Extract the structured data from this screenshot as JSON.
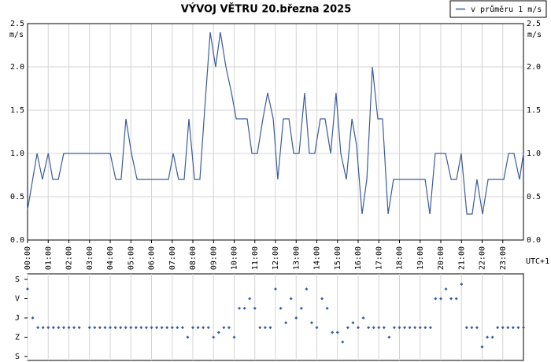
{
  "chart_data": [
    {
      "type": "line",
      "title": "VÝVOJ VĚTRU  20.března 2025",
      "y_label": "m/s",
      "x_label": "UTC+1",
      "legend": "top-right",
      "grid": true,
      "xlim": [
        0,
        24
      ],
      "xticks": [
        {
          "value": 0,
          "label": "00:00"
        },
        {
          "value": 1,
          "label": "01:00"
        },
        {
          "value": 2,
          "label": "02:00"
        },
        {
          "value": 3,
          "label": "03:00"
        },
        {
          "value": 4,
          "label": "04:00"
        },
        {
          "value": 5,
          "label": "05:00"
        },
        {
          "value": 6,
          "label": "06:00"
        },
        {
          "value": 7,
          "label": "07:00"
        },
        {
          "value": 8,
          "label": "08:00"
        },
        {
          "value": 9,
          "label": "09:00"
        },
        {
          "value": 10,
          "label": "10:00"
        },
        {
          "value": 11,
          "label": "11:00"
        },
        {
          "value": 12,
          "label": "12:00"
        },
        {
          "value": 13,
          "label": "13:00"
        },
        {
          "value": 14,
          "label": "14:00"
        },
        {
          "value": 15,
          "label": "15:00"
        },
        {
          "value": 16,
          "label": "16:00"
        },
        {
          "value": 17,
          "label": "17:00"
        },
        {
          "value": 18,
          "label": "18:00"
        },
        {
          "value": 19,
          "label": "19:00"
        },
        {
          "value": 20,
          "label": "20:00"
        },
        {
          "value": 21,
          "label": "21:00"
        },
        {
          "value": 22,
          "label": "22:00"
        },
        {
          "value": 23,
          "label": "23:00"
        }
      ],
      "ylim": [
        0,
        2.5
      ],
      "yticks": [
        {
          "value": 0,
          "label": "0.0"
        },
        0.5,
        {
          "value": 1,
          "label": "1.0"
        },
        1.5,
        {
          "value": 2,
          "label": "2.0"
        },
        2.5
      ],
      "x": [
        0,
        0.46,
        0.72,
        1.0,
        1.22,
        1.49,
        1.75,
        4.0,
        4.27,
        4.53,
        4.76,
        5.03,
        5.3,
        6.82,
        7.05,
        7.31,
        7.58,
        7.81,
        8.08,
        8.34,
        8.57,
        8.84,
        9.1,
        9.33,
        9.6,
        9.87,
        10.1,
        10.63,
        10.86,
        11.12,
        11.39,
        11.62,
        11.89,
        12.11,
        12.38,
        12.65,
        12.88,
        13.14,
        13.41,
        13.64,
        13.9,
        14.17,
        14.4,
        14.67,
        14.93,
        15.16,
        15.43,
        15.7,
        15.92,
        16.19,
        16.42,
        16.69,
        16.95,
        17.18,
        17.45,
        17.71,
        19.24,
        19.47,
        19.73,
        20.23,
        20.5,
        20.76,
        20.99,
        21.26,
        21.52,
        21.75,
        22.02,
        22.29,
        23.05,
        23.28,
        23.54,
        23.81,
        24.0
      ],
      "series": [
        {
          "name": "v průměru 1 m/s",
          "color": "#3b5b9b",
          "values": [
            0.35,
            1.0,
            0.7,
            1.0,
            0.7,
            0.7,
            1.0,
            1.0,
            0.7,
            0.7,
            1.4,
            1.0,
            0.7,
            0.7,
            1.0,
            0.7,
            0.7,
            1.4,
            0.7,
            0.7,
            1.5,
            2.4,
            2.0,
            2.4,
            2.0,
            1.7,
            1.4,
            1.4,
            1.0,
            1.0,
            1.4,
            1.7,
            1.4,
            0.7,
            1.4,
            1.4,
            1.0,
            1.0,
            1.7,
            1.0,
            1.0,
            1.4,
            1.4,
            1.0,
            1.7,
            1.0,
            0.7,
            1.4,
            1.1,
            0.3,
            0.7,
            2.0,
            1.4,
            1.4,
            0.3,
            0.7,
            0.7,
            0.3,
            1.0,
            1.0,
            0.7,
            0.7,
            1.0,
            0.3,
            0.3,
            0.7,
            0.3,
            0.7,
            0.7,
            1.0,
            1.0,
            0.7,
            1.0
          ]
        }
      ]
    },
    {
      "type": "scatter",
      "color": "#3b5b9b",
      "xlim": [
        0,
        24
      ],
      "ylim": [
        0,
        360
      ],
      "yticks": [
        {
          "value": 0,
          "label": "S"
        },
        {
          "value": 90,
          "label": "V"
        },
        {
          "value": 180,
          "label": "J"
        },
        {
          "value": 270,
          "label": "Z"
        },
        {
          "value": 360,
          "label": "S"
        }
      ],
      "x": [
        0,
        0.25,
        0.5,
        0.75,
        1,
        1.25,
        1.5,
        1.75,
        2,
        2.25,
        2.5,
        2.75,
        3,
        3.25,
        3.5,
        3.75,
        4,
        4.25,
        4.5,
        4.75,
        5,
        5.25,
        5.5,
        5.75,
        6,
        6.25,
        6.5,
        6.75,
        7,
        7.25,
        7.5,
        7.75,
        8,
        8.25,
        8.5,
        8.75,
        9,
        9.25,
        9.5,
        9.75,
        10,
        10.25,
        10.5,
        10.75,
        11,
        11.25,
        11.5,
        11.75,
        12,
        12.25,
        12.5,
        12.75,
        13,
        13.25,
        13.5,
        13.75,
        14,
        14.25,
        14.5,
        14.75,
        15,
        15.25,
        15.5,
        15.75,
        16,
        16.25,
        16.5,
        16.75,
        17,
        17.25,
        17.5,
        17.75,
        18,
        18.25,
        18.5,
        18.75,
        19,
        19.25,
        19.5,
        19.75,
        20,
        20.25,
        20.5,
        20.75,
        21,
        21.25,
        21.5,
        21.75,
        22,
        22.25,
        22.5,
        22.75,
        23,
        23.25,
        23.5,
        23.75,
        24
      ],
      "values": [
        45,
        180,
        225,
        225,
        225,
        225,
        225,
        225,
        225,
        225,
        225,
        null,
        225,
        225,
        225,
        225,
        225,
        225,
        225,
        225,
        225,
        225,
        225,
        225,
        225,
        225,
        225,
        225,
        225,
        225,
        225,
        270,
        225,
        225,
        225,
        225,
        270,
        247.5,
        225,
        225,
        270,
        135,
        135,
        90,
        135,
        225,
        225,
        225,
        45,
        135,
        202.5,
        90,
        180,
        135,
        45,
        202.5,
        225,
        90,
        135,
        247.5,
        247.5,
        292.5,
        225,
        202.5,
        225,
        180,
        225,
        225,
        225,
        225,
        270,
        225,
        225,
        225,
        225,
        225,
        225,
        225,
        225,
        90,
        90,
        45,
        90,
        90,
        22.5,
        225,
        225,
        225,
        315,
        270,
        270,
        225,
        225,
        225,
        225,
        225,
        225
      ]
    }
  ]
}
